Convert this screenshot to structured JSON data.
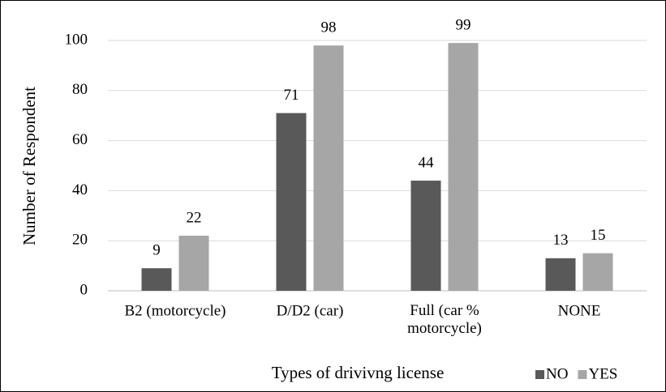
{
  "chart_data": {
    "type": "bar",
    "x_label": "Types of drivivng license",
    "y_label": "Number of Respondent",
    "categories": [
      "B2 (motorcycle)",
      "D/D2 (car)",
      "Full (car % motorcycle)",
      "NONE"
    ],
    "series": [
      {
        "name": "NO",
        "color": "#595959",
        "values": [
          9,
          71,
          44,
          13
        ]
      },
      {
        "name": "YES",
        "color": "#a6a6a6",
        "values": [
          22,
          98,
          99,
          15
        ]
      }
    ],
    "ylim": [
      0,
      100
    ],
    "yticks": [
      0,
      20,
      40,
      60,
      80,
      100
    ],
    "grid": true,
    "legend": "bottom-right"
  }
}
